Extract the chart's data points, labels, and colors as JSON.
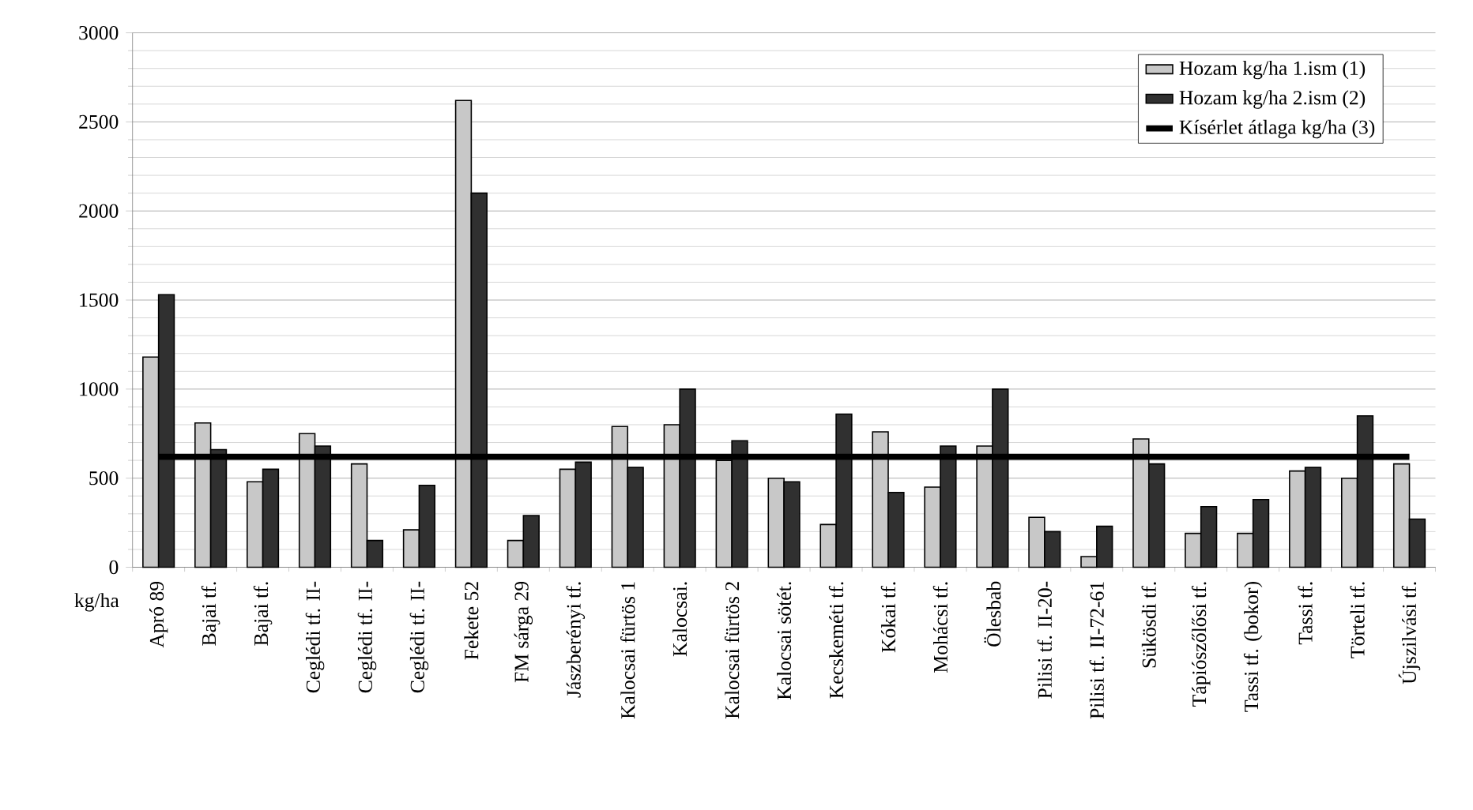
{
  "chart_data": {
    "type": "bar",
    "categories": [
      "Apró 89",
      "Bajai tf.",
      "Bajai tf.",
      "Ceglédi tf. II-",
      "Ceglédi tf. II-",
      "Ceglédi tf. II-",
      "Fekete 52",
      "FM sárga 29",
      "Jászberényi tf.",
      "Kalocsai fürtös 1",
      "Kalocsai.",
      "Kalocsai fürtös 2",
      "Kalocsai sötét.",
      "Kecskeméti tf.",
      "Kókai tf.",
      "Mohácsi tf.",
      "Ölesbab",
      "Pilisi tf. II-20-",
      "Pilisi tf. II-72-61",
      "Sükösdi tf.",
      "Tápiószőlősi tf.",
      "Tassi tf. (bokor)",
      "Tassi tf.",
      "Törteli tf.",
      "Újszilvási tf."
    ],
    "series": [
      {
        "name": "Hozam kg/ha 1.ism (1)",
        "color": "#c8c8c8",
        "values": [
          1180,
          810,
          480,
          750,
          580,
          210,
          2620,
          150,
          550,
          790,
          800,
          600,
          500,
          240,
          760,
          450,
          680,
          280,
          60,
          720,
          190,
          190,
          540,
          500,
          580
        ]
      },
      {
        "name": "Hozam kg/ha 2.ism (2)",
        "color": "#303030",
        "values": [
          1530,
          660,
          550,
          680,
          150,
          460,
          2100,
          290,
          590,
          560,
          1000,
          710,
          480,
          860,
          420,
          680,
          1000,
          200,
          230,
          580,
          340,
          380,
          560,
          850,
          270
        ]
      },
      {
        "name": "Kísérlet átlaga kg/ha (3)",
        "type": "line",
        "color": "#000000",
        "values": [
          620,
          620,
          620,
          620,
          620,
          620,
          620,
          620,
          620,
          620,
          620,
          620,
          620,
          620,
          620,
          620,
          620,
          620,
          620,
          620,
          620,
          620,
          620,
          620,
          620
        ]
      }
    ],
    "ylabel": "kg/ha",
    "ylim": [
      0,
      3000
    ],
    "yticks": [
      0,
      500,
      1000,
      1500,
      2000,
      2500,
      3000
    ],
    "grid": "y",
    "legend": "top right"
  }
}
